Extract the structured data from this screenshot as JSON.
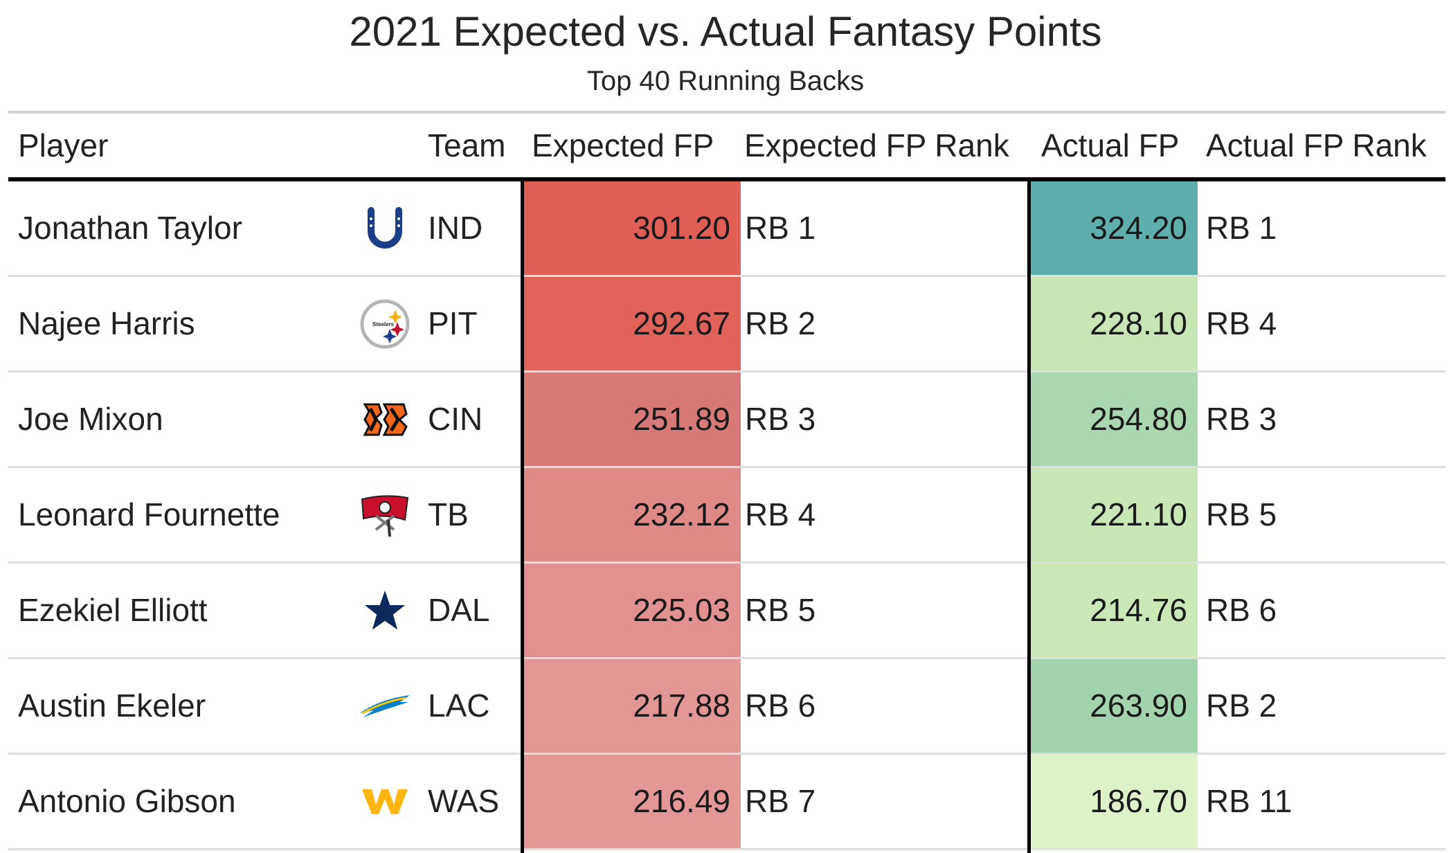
{
  "title": "2021 Expected vs. Actual Fantasy Points",
  "subtitle": "Top 40 Running Backs",
  "colors": {
    "expected_scale": [
      "#e5999a",
      "#e06055"
    ],
    "actual_scale": [
      "#def2c8",
      "#5eafad"
    ],
    "rule_light": "#d3d3d3",
    "rule_dark": "#000000"
  },
  "chart_data": {
    "type": "table",
    "columns": [
      "Player",
      "Team",
      "Expected FP",
      "Expected FP Rank",
      "Actual FP",
      "Actual FP Rank"
    ],
    "rows": [
      {
        "player": "Jonathan Taylor",
        "team": "IND",
        "logo": "colts-horseshoe-icon",
        "expected_fp": "301.20",
        "expected_rank": "RB 1",
        "actual_fp": "324.20",
        "actual_rank": "RB 1",
        "expected_color": "#e05f55",
        "actual_color": "#5daead"
      },
      {
        "player": "Najee Harris",
        "team": "PIT",
        "logo": "steelers-hypocycloid-icon",
        "expected_fp": "292.67",
        "expected_rank": "RB 2",
        "actual_fp": "228.10",
        "actual_rank": "RB 4",
        "expected_color": "#e0635a",
        "actual_color": "#c7e6b4"
      },
      {
        "player": "Joe Mixon",
        "team": "CIN",
        "logo": "bengals-stripes-icon",
        "expected_fp": "251.89",
        "expected_rank": "RB 3",
        "actual_fp": "254.80",
        "actual_rank": "RB 3",
        "expected_color": "#d77a77",
        "actual_color": "#a9d7b0"
      },
      {
        "player": "Leonard Fournette",
        "team": "TB",
        "logo": "buccaneers-flag-icon",
        "expected_fp": "232.12",
        "expected_rank": "RB 4",
        "actual_fp": "221.10",
        "actual_rank": "RB 5",
        "expected_color": "#e08a87",
        "actual_color": "#c8e7b5"
      },
      {
        "player": "Ezekiel Elliott",
        "team": "DAL",
        "logo": "cowboys-star-icon",
        "expected_fp": "225.03",
        "expected_rank": "RB 5",
        "actual_fp": "214.76",
        "actual_rank": "RB 6",
        "expected_color": "#e19290",
        "actual_color": "#cbe9b7"
      },
      {
        "player": "Austin Ekeler",
        "team": "LAC",
        "logo": "chargers-bolt-icon",
        "expected_fp": "217.88",
        "expected_rank": "RB 6",
        "actual_fp": "263.90",
        "actual_rank": "RB 2",
        "expected_color": "#e39795",
        "actual_color": "#a1d4ad"
      },
      {
        "player": "Antonio Gibson",
        "team": "WAS",
        "logo": "washington-w-icon",
        "expected_fp": "216.49",
        "expected_rank": "RB 7",
        "actual_fp": "186.70",
        "actual_rank": "RB 11",
        "expected_color": "#e39896",
        "actual_color": "#def2c7"
      }
    ]
  }
}
